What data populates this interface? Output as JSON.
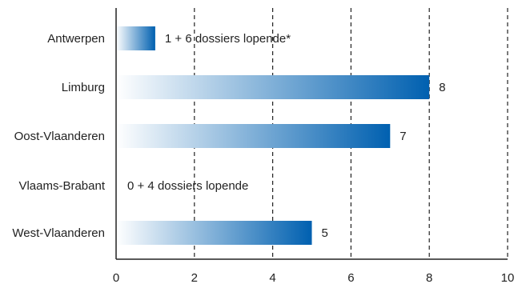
{
  "chart_data": {
    "type": "bar",
    "orientation": "horizontal",
    "categories": [
      "Antwerpen",
      "Limburg",
      "Oost-Vlaanderen",
      "Vlaams-Brabant",
      "West-Vlaanderen"
    ],
    "values": [
      1,
      8,
      7,
      0,
      5
    ],
    "data_labels": [
      "1 + 6 dossiers lopende*",
      "8",
      "7",
      "0 + 4 dossiers lopende",
      "5"
    ],
    "xlim": [
      0,
      10
    ],
    "xticks": [
      0,
      2,
      4,
      6,
      8,
      10
    ],
    "title": "",
    "xlabel": "",
    "ylabel": "",
    "grid": "vertical-dashed",
    "legend": "none",
    "colors": {
      "bar_start": "#ffffff",
      "bar_end": "#0060b0",
      "axis": "#222222",
      "grid": "#222222"
    }
  }
}
